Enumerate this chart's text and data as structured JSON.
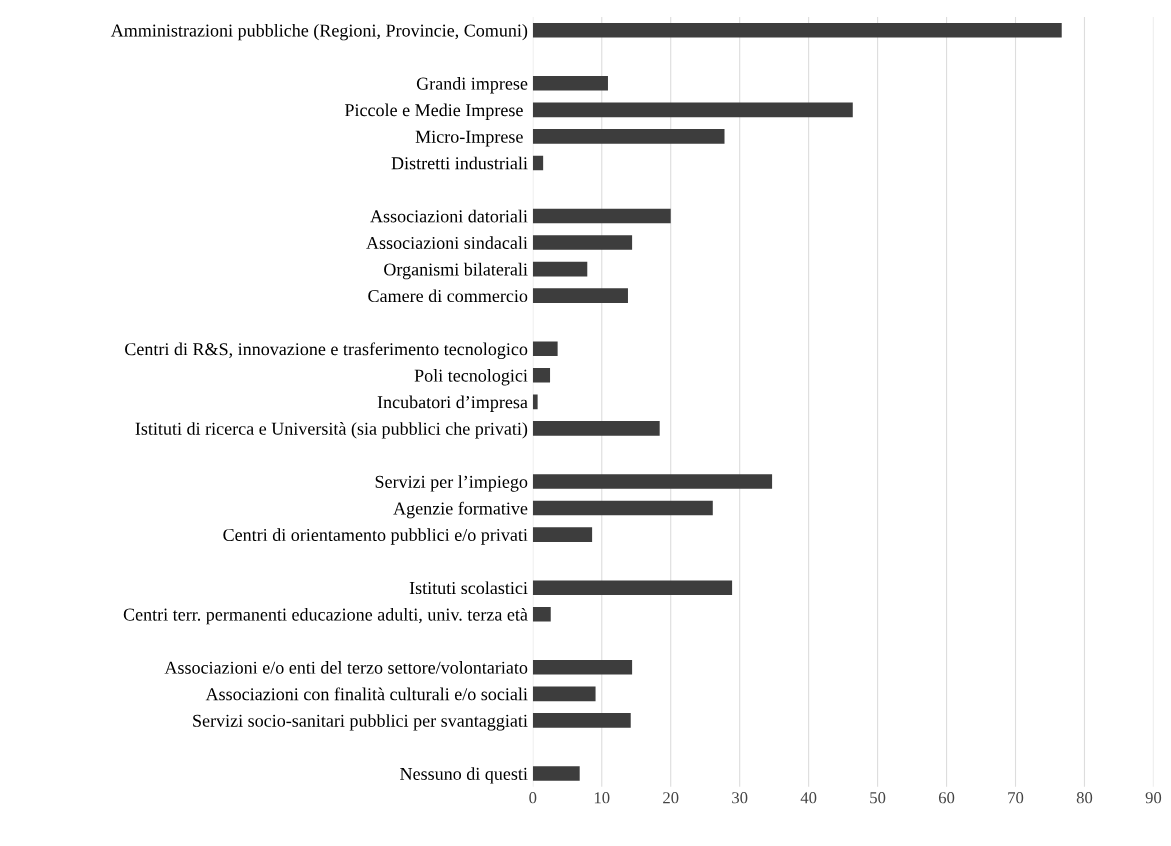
{
  "chart_data": {
    "type": "bar",
    "orientation": "horizontal",
    "color": "#3d3d3d",
    "categories": [
      "Amministrazioni pubbliche (Regioni, Provincie, Comuni)",
      null,
      "Grandi imprese",
      "Piccole e Medie Imprese ",
      "Micro-Imprese ",
      "Distretti industriali",
      null,
      "Associazioni datoriali",
      "Associazioni sindacali",
      "Organismi bilaterali",
      "Camere di commercio",
      null,
      "Centri di R&S, innovazione e trasferimento tecnologico",
      "Poli tecnologici",
      "Incubatori d’impresa",
      "Istituti di ricerca e Università (sia pubblici che privati)",
      null,
      "Servizi per l’impiego",
      "Agenzie formative",
      "Centri di orientamento pubblici e/o privati",
      null,
      "Istituti scolastici",
      "Centri terr. permanenti educazione adulti, univ. terza età",
      null,
      "Associazioni e/o enti del terzo settore/volontariato",
      "Associazioni con finalità culturali e/o sociali",
      "Servizi socio-sanitari pubblici per svantaggiati",
      null,
      "Nessuno di questi"
    ],
    "values": [
      76.7,
      null,
      10.9,
      46.4,
      27.8,
      1.5,
      null,
      20,
      14.4,
      7.9,
      13.8,
      null,
      3.6,
      2.5,
      0.7,
      18.4,
      null,
      34.7,
      26.1,
      8.6,
      null,
      28.9,
      2.6,
      null,
      14.4,
      9.1,
      14.2,
      null,
      6.8
    ],
    "xlim": [
      0,
      90
    ],
    "xticks": [
      0,
      10,
      20,
      30,
      40,
      50,
      60,
      70,
      80,
      90
    ],
    "grid": "x"
  }
}
